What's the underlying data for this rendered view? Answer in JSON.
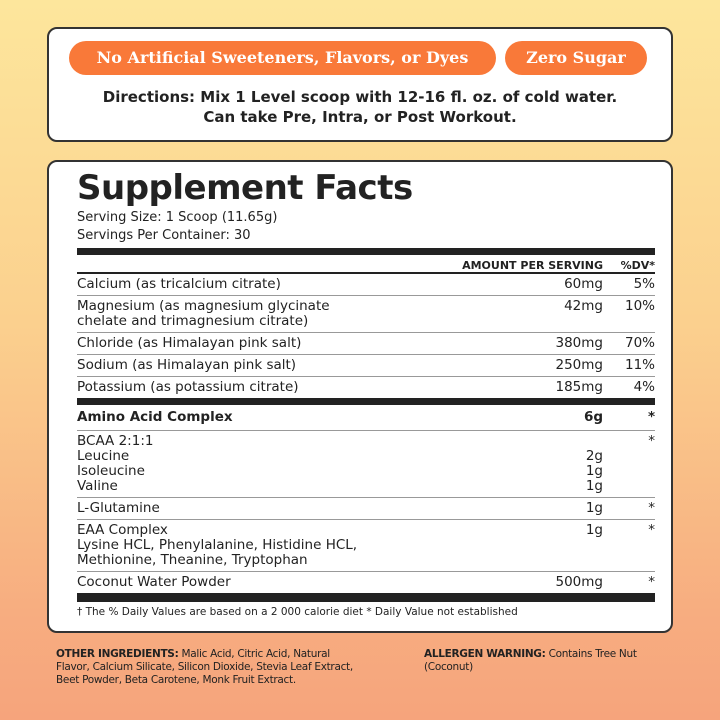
{
  "badges": [
    "No Artificial Sweeteners, Flavors, or Dyes",
    "Zero Sugar"
  ],
  "directions": [
    "Directions: Mix 1 Level scoop with 12-16 fl. oz. of cold water.",
    "Can take Pre, Intra, or Post Workout."
  ],
  "facts": {
    "title": "Supplement Facts",
    "serving_size": "Serving Size: 1 Scoop (11.65g)",
    "servings": "Servings Per Container: 30",
    "header": {
      "amount": "AMOUNT PER SERVING",
      "dv": "%DV*"
    },
    "rows": [
      {
        "name": "Calcium (as tricalcium citrate)",
        "amount": "60mg",
        "dv": "5%"
      },
      {
        "name": "Magnesium (as magnesium glycinate chelate and trimagnesium citrate)",
        "amount": "42mg",
        "dv": "10%"
      },
      {
        "name": "Chloride (as Himalayan pink salt)",
        "amount": "380mg",
        "dv": "70%"
      },
      {
        "name": "Sodium (as Himalayan pink salt)",
        "amount": "250mg",
        "dv": "11%"
      },
      {
        "name": "Potassium (as potassium citrate)",
        "amount": "185mg",
        "dv": "4%"
      },
      {
        "name": "Amino Acid Complex",
        "amount": "6g",
        "dv": "*"
      },
      {
        "name": "BCAA 2:1:1",
        "amount": "",
        "dv": "*",
        "subs": [
          {
            "name": "Leucine",
            "amount": "2g"
          },
          {
            "name": "Isoleucine",
            "amount": "1g"
          },
          {
            "name": "Valine",
            "amount": "1g"
          }
        ]
      },
      {
        "name": "L-Glutamine",
        "amount": "1g",
        "dv": "*"
      },
      {
        "name": "EAA Complex",
        "detail": "Lysine HCL, Phenylalanine, Histidine HCL, Methionine, Theanine, Tryptophan",
        "amount": "1g",
        "dv": "*"
      },
      {
        "name": "Coconut Water Powder",
        "amount": "500mg",
        "dv": "*"
      }
    ],
    "footnote": "† The % Daily Values are based on a 2 000 calorie diet  * Daily Value not established"
  },
  "other_ingredients": {
    "label": "OTHER INGREDIENTS:",
    "text": " Malic Acid, Citric Acid, Natural Flavor, Calcium Silicate, Silicon Dioxide, Stevia Leaf Extract, Beet Powder, Beta Carotene, Monk Fruit Extract."
  },
  "allergen": {
    "label": "ALLERGEN WARNING:",
    "text": " Contains Tree Nut (Coconut)"
  },
  "colors": {
    "accent": "#f97939",
    "bg_top": "#fde69c",
    "bg_bottom": "#f6a47c"
  }
}
